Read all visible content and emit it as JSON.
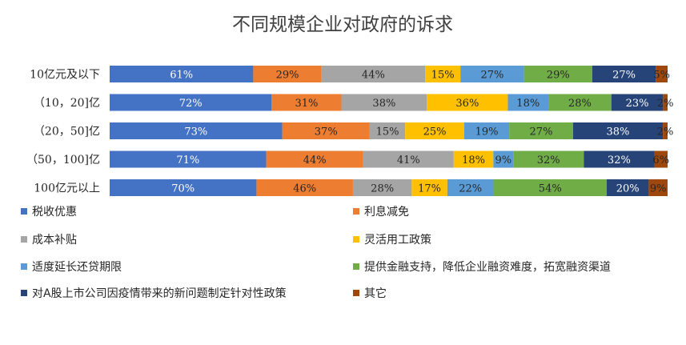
{
  "chart_data": {
    "type": "bar",
    "orientation": "horizontal",
    "stacked": true,
    "title": "不同规模企业对政府的诉求",
    "xlabel": "",
    "ylabel": "",
    "grid": false,
    "legend_position": "bottom",
    "categories": [
      "10亿元及以下",
      "（10，20]亿",
      "（20，50]亿",
      "（50，100]亿",
      "100亿元以上"
    ],
    "series": [
      {
        "name": "税收优惠",
        "color": "#4472C4",
        "label_color": "#ffffff",
        "values": [
          61,
          72,
          73,
          71,
          70
        ]
      },
      {
        "name": "利息减免",
        "color": "#ED7D31",
        "label_color": "#262626",
        "values": [
          29,
          31,
          37,
          44,
          46
        ]
      },
      {
        "name": "成本补贴",
        "color": "#A5A5A5",
        "label_color": "#262626",
        "values": [
          44,
          38,
          15,
          41,
          28
        ]
      },
      {
        "name": "灵活用工政策",
        "color": "#FFC000",
        "label_color": "#262626",
        "values": [
          15,
          36,
          25,
          18,
          17
        ]
      },
      {
        "name": "适度延长还贷期限",
        "color": "#5B9BD5",
        "label_color": "#262626",
        "values": [
          27,
          18,
          19,
          9,
          22
        ]
      },
      {
        "name": "提供金融支持，降低企业融资难度，拓宽融资渠道",
        "color": "#70AD47",
        "label_color": "#262626",
        "values": [
          29,
          28,
          27,
          32,
          54
        ]
      },
      {
        "name": "对A股上市公司因疫情带来的新问题制定针对性政策",
        "color": "#264478",
        "label_color": "#ffffff",
        "values": [
          27,
          23,
          38,
          32,
          20
        ]
      },
      {
        "name": "其它",
        "color": "#9E480E",
        "label_color": "#262626",
        "values": [
          5,
          2,
          2,
          6,
          9
        ]
      }
    ],
    "value_suffix": "%"
  }
}
